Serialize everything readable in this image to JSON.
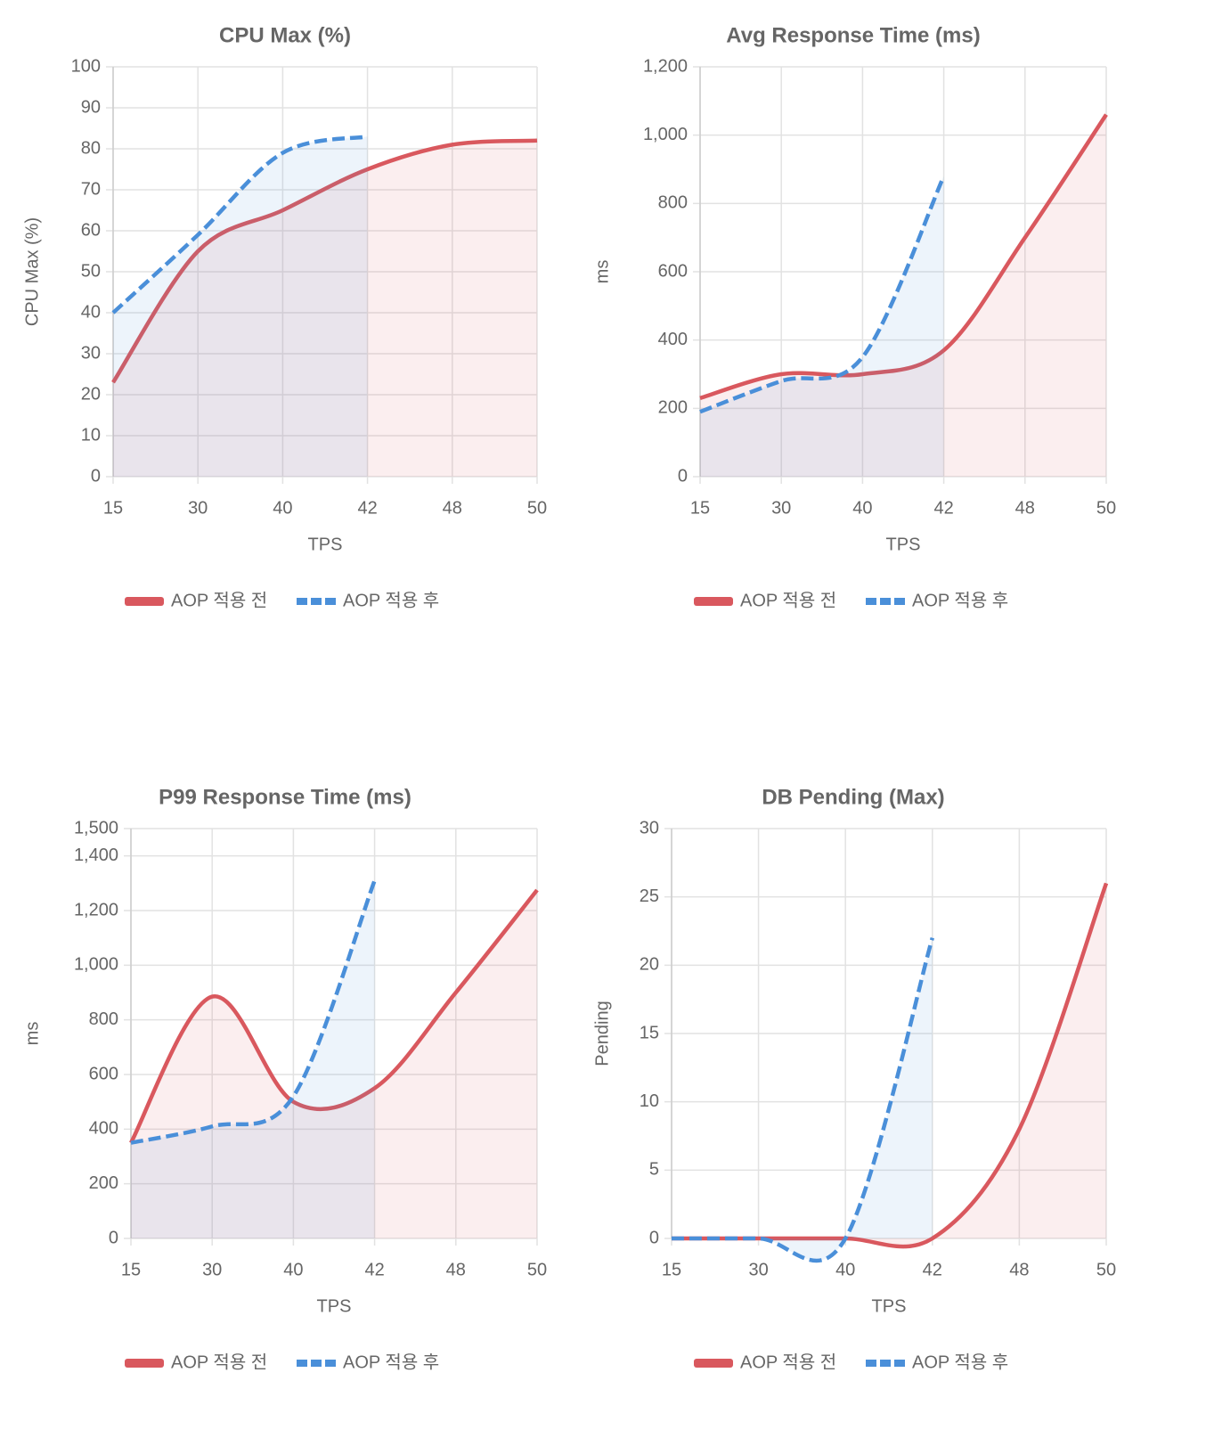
{
  "chart_data": [
    {
      "type": "line",
      "title": "CPU Max (%)",
      "x_label": "TPS",
      "y_label": "CPU Max (%)",
      "categories": [
        "15",
        "30",
        "40",
        "42",
        "48",
        "50"
      ],
      "series": [
        {
          "name": "AOP 적용 전",
          "color": "#d9585e",
          "values": [
            23,
            55,
            65,
            75,
            81,
            82
          ]
        },
        {
          "name": "AOP 적용 후",
          "color": "#4a8fd9",
          "values": [
            40,
            59,
            79,
            83,
            null,
            null
          ]
        }
      ],
      "ylim": [
        0,
        100
      ],
      "yticks": [
        0,
        10,
        20,
        30,
        40,
        50,
        60,
        70,
        80,
        90,
        100
      ],
      "grid": true
    },
    {
      "type": "line",
      "title": "Avg Response Time (ms)",
      "x_label": "TPS",
      "y_label": "ms",
      "categories": [
        "15",
        "30",
        "40",
        "42",
        "48",
        "50"
      ],
      "series": [
        {
          "name": "AOP 적용 전",
          "color": "#d9585e",
          "values": [
            230,
            300,
            300,
            370,
            700,
            1060
          ]
        },
        {
          "name": "AOP 적용 후",
          "color": "#4a8fd9",
          "values": [
            190,
            280,
            350,
            880,
            null,
            null
          ]
        }
      ],
      "ylim": [
        0,
        1200
      ],
      "yticks": [
        0,
        200,
        400,
        600,
        800,
        {
          "value": 1000,
          "label": "1,000"
        },
        {
          "value": 1200,
          "label": "1,200"
        }
      ],
      "grid": true
    },
    {
      "type": "line",
      "title": "P99 Response Time (ms)",
      "x_label": "TPS",
      "y_label": "ms",
      "categories": [
        "15",
        "30",
        "40",
        "42",
        "48",
        "50"
      ],
      "series": [
        {
          "name": "AOP 적용 전",
          "color": "#d9585e",
          "values": [
            350,
            885,
            500,
            550,
            900,
            1275
          ]
        },
        {
          "name": "AOP 적용 후",
          "color": "#4a8fd9",
          "values": [
            350,
            410,
            520,
            1310,
            null,
            null
          ]
        }
      ],
      "ylim": [
        0,
        1500
      ],
      "yticks": [
        0,
        200,
        400,
        600,
        800,
        {
          "value": 1000,
          "label": "1,000"
        },
        {
          "value": 1200,
          "label": "1,200"
        },
        {
          "value": 1400,
          "label": "1,400"
        },
        {
          "value": 1500,
          "label": "1,500"
        }
      ],
      "grid": true
    },
    {
      "type": "line",
      "title": "DB Pending (Max)",
      "x_label": "TPS",
      "y_label": "Pending",
      "categories": [
        "15",
        "30",
        "40",
        "42",
        "48",
        "50"
      ],
      "series": [
        {
          "name": "AOP 적용 전",
          "color": "#d9585e",
          "values": [
            0,
            0,
            0,
            0,
            8,
            26
          ]
        },
        {
          "name": "AOP 적용 후",
          "color": "#4a8fd9",
          "values": [
            0,
            0,
            0,
            22,
            null,
            null
          ]
        }
      ],
      "ylim": [
        0,
        30
      ],
      "yticks": [
        0,
        5,
        10,
        15,
        20,
        25,
        30
      ],
      "grid": true
    }
  ]
}
